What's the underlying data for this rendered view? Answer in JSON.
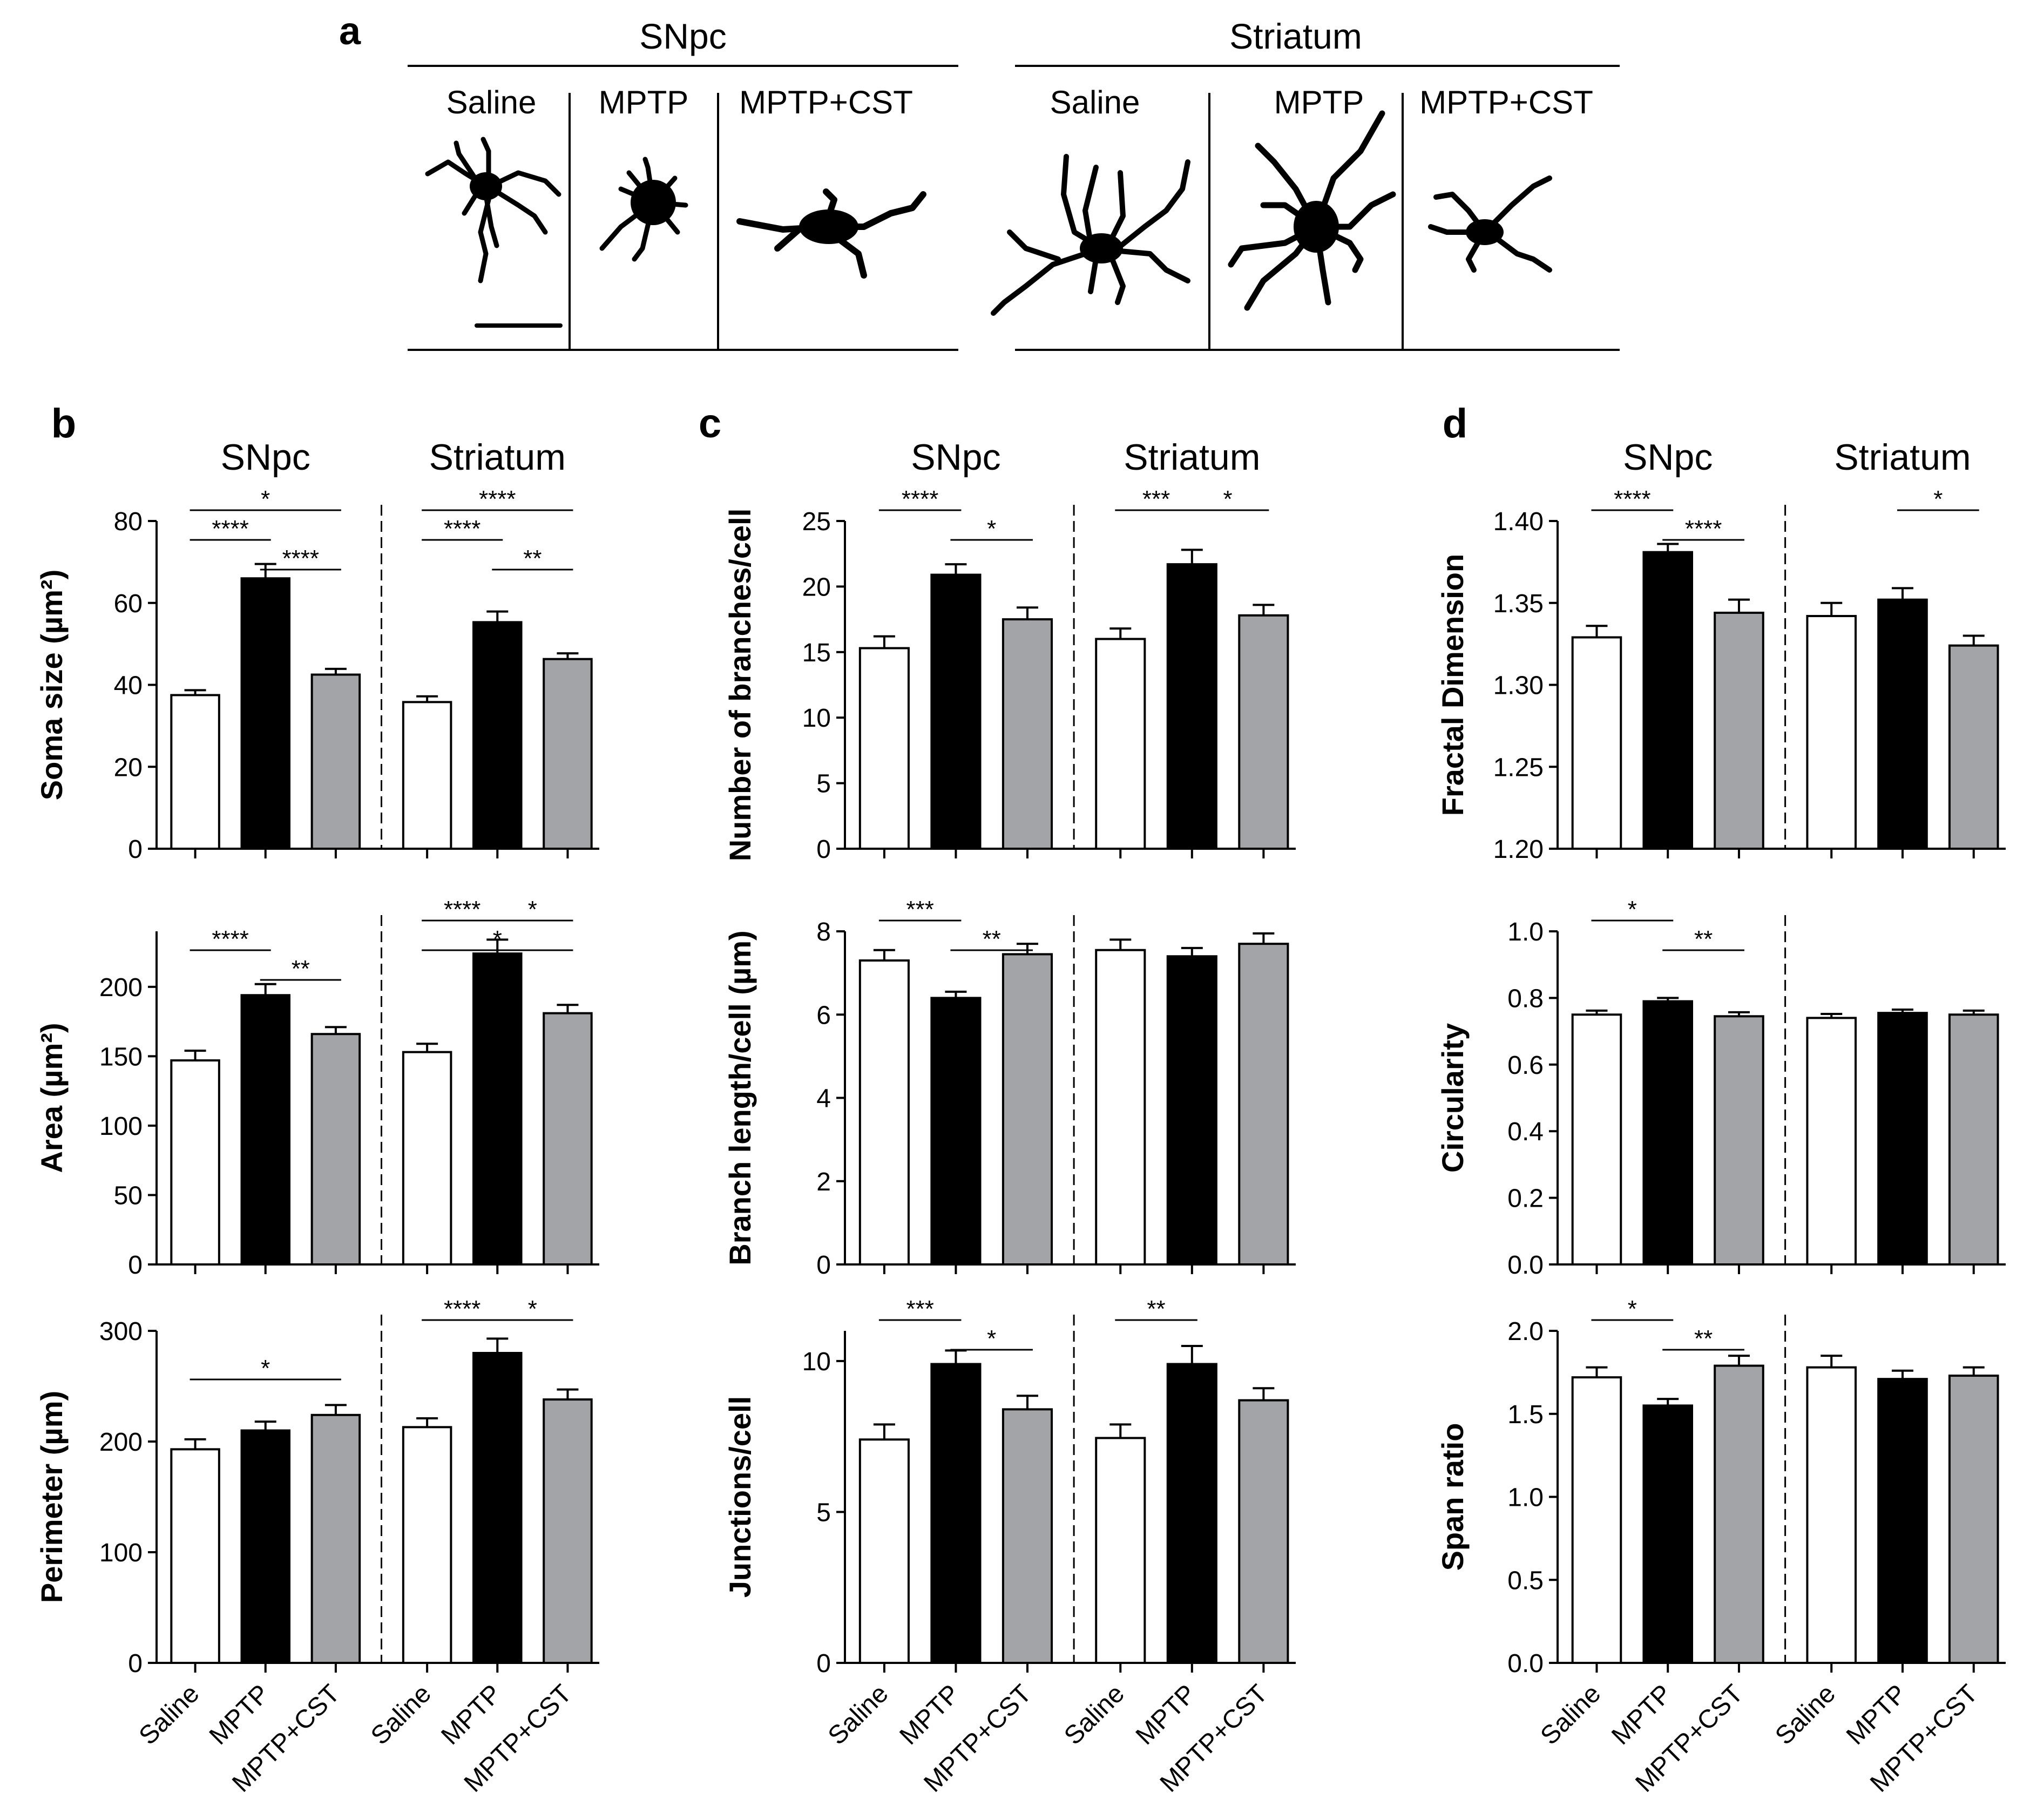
{
  "colors": {
    "saline": "#ffffff",
    "mptp": "#000000",
    "mptp_cst": "#a3a4a8",
    "axis": "#000000"
  },
  "panel_a": {
    "letter": "a",
    "regions": [
      {
        "name": "SNpc",
        "groups": [
          "Saline",
          "MPTP",
          "MPTP+CST"
        ]
      },
      {
        "name": "Striatum",
        "groups": [
          "Saline",
          "MPTP",
          "MPTP+CST"
        ]
      }
    ]
  },
  "chart_data": [
    {
      "id": "soma",
      "panel": "b",
      "panel_letter": "b",
      "type": "bar",
      "ylabel": "Soma size (µm²)",
      "ylim": [
        0,
        80
      ],
      "yticks": [
        "0",
        "20",
        "40",
        "60",
        "80"
      ],
      "regions": [
        "SNpc",
        "Striatum"
      ],
      "categories": [
        "Saline",
        "MPTP",
        "MPTP+CST",
        "Saline",
        "MPTP",
        "MPTP+CST"
      ],
      "values": [
        37.5,
        66,
        42.5,
        35.8,
        55.3,
        46.3
      ],
      "errors": [
        1.2,
        3.5,
        1.4,
        1.4,
        2.6,
        1.4
      ],
      "sig": [
        {
          "from": 0,
          "to": 2,
          "level": 0,
          "label": "*",
          "region": 0
        },
        {
          "from": 0,
          "to": 1,
          "level": 1,
          "label": "****",
          "region": 0
        },
        {
          "from": 1,
          "to": 2,
          "level": 2,
          "label": "****",
          "region": 0
        },
        {
          "from": 3,
          "to": 5,
          "level": 0,
          "label": "****",
          "region": 1
        },
        {
          "from": 3,
          "to": 4,
          "level": 1,
          "label": "****",
          "region": 1
        },
        {
          "from": 4,
          "to": 5,
          "level": 2,
          "label": "**",
          "region": 1
        }
      ]
    },
    {
      "id": "area",
      "panel": "b",
      "type": "bar",
      "ylabel": "Area (µm²)",
      "ylim": [
        0,
        240
      ],
      "yticks": [
        "0",
        "50",
        "100",
        "150",
        "200"
      ],
      "categories": [
        "Saline",
        "MPTP",
        "MPTP+CST",
        "Saline",
        "MPTP",
        "MPTP+CST"
      ],
      "values": [
        147,
        194,
        166,
        153,
        224,
        181
      ],
      "errors": [
        7,
        8,
        5,
        6,
        10,
        6
      ],
      "sig": [
        {
          "from": 0,
          "to": 1,
          "level": 1,
          "label": "****",
          "region": 0
        },
        {
          "from": 1,
          "to": 2,
          "level": 2,
          "label": "**",
          "region": 0
        },
        {
          "from": 3,
          "to": 4,
          "level": 0,
          "label": "****",
          "region": 1
        },
        {
          "from": 3,
          "to": 5,
          "level": 1,
          "label": "*",
          "region": 1
        },
        {
          "from": 4,
          "to": 5,
          "level": 0,
          "label": "*",
          "region": 1
        }
      ]
    },
    {
      "id": "perimeter",
      "panel": "b",
      "type": "bar",
      "ylabel": "Perimeter (µm)",
      "ylim": [
        0,
        300
      ],
      "yticks": [
        "0",
        "100",
        "200",
        "300"
      ],
      "categories": [
        "Saline",
        "MPTP",
        "MPTP+CST",
        "Saline",
        "MPTP",
        "MPTP+CST"
      ],
      "values": [
        193,
        210,
        224,
        213,
        280,
        238
      ],
      "errors": [
        9,
        8,
        9,
        8,
        13,
        9
      ],
      "sig": [
        {
          "from": 0,
          "to": 2,
          "level": 2,
          "label": "*",
          "region": 0
        },
        {
          "from": 3,
          "to": 4,
          "level": 0,
          "label": "****",
          "region": 1
        },
        {
          "from": 4,
          "to": 5,
          "level": 0,
          "label": "*",
          "region": 1
        }
      ]
    },
    {
      "id": "branches",
      "panel": "c",
      "panel_letter": "c",
      "type": "bar",
      "ylabel": "Number of branches/cell",
      "ylim": [
        0,
        25
      ],
      "yticks": [
        "0",
        "5",
        "10",
        "15",
        "20",
        "25"
      ],
      "regions": [
        "SNpc",
        "Striatum"
      ],
      "categories": [
        "Saline",
        "MPTP",
        "MPTP+CST",
        "Saline",
        "MPTP",
        "MPTP+CST"
      ],
      "values": [
        15.3,
        20.9,
        17.5,
        16.0,
        21.7,
        17.8
      ],
      "errors": [
        0.9,
        0.8,
        0.9,
        0.8,
        1.1,
        0.8
      ],
      "sig": [
        {
          "from": 0,
          "to": 1,
          "level": 0,
          "label": "****",
          "region": 0
        },
        {
          "from": 1,
          "to": 2,
          "level": 1,
          "label": "*",
          "region": 0
        },
        {
          "from": 3,
          "to": 4,
          "level": 0,
          "label": "***",
          "region": 1
        },
        {
          "from": 4,
          "to": 5,
          "level": 0,
          "label": "*",
          "region": 1
        }
      ]
    },
    {
      "id": "branch_length",
      "panel": "c",
      "type": "bar",
      "ylabel": "Branch length/cell (µm)",
      "ylim": [
        0,
        8
      ],
      "yticks": [
        "0",
        "2",
        "4",
        "6",
        "8"
      ],
      "categories": [
        "Saline",
        "MPTP",
        "MPTP+CST",
        "Saline",
        "MPTP",
        "MPTP+CST"
      ],
      "values": [
        7.3,
        6.4,
        7.45,
        7.55,
        7.4,
        7.7
      ],
      "errors": [
        0.25,
        0.15,
        0.25,
        0.25,
        0.2,
        0.25
      ],
      "sig": [
        {
          "from": 0,
          "to": 1,
          "level": 0,
          "label": "***",
          "region": 0
        },
        {
          "from": 1,
          "to": 2,
          "level": 1,
          "label": "**",
          "region": 0
        }
      ]
    },
    {
      "id": "junctions",
      "panel": "c",
      "type": "bar",
      "ylabel": "Junctions/cell",
      "ylim": [
        0,
        11
      ],
      "yticks": [
        "0",
        "5",
        "10"
      ],
      "categories": [
        "Saline",
        "MPTP",
        "MPTP+CST",
        "Saline",
        "MPTP",
        "MPTP+CST"
      ],
      "values": [
        7.4,
        9.9,
        8.4,
        7.45,
        9.9,
        8.7
      ],
      "errors": [
        0.5,
        0.45,
        0.45,
        0.45,
        0.6,
        0.4
      ],
      "sig": [
        {
          "from": 0,
          "to": 1,
          "level": 0,
          "label": "***",
          "region": 0
        },
        {
          "from": 1,
          "to": 2,
          "level": 1,
          "label": "*",
          "region": 0
        },
        {
          "from": 3,
          "to": 4,
          "level": 0,
          "label": "**",
          "region": 1
        }
      ]
    },
    {
      "id": "fractal",
      "panel": "d",
      "panel_letter": "d",
      "type": "bar",
      "ylabel": "Fractal Dimension",
      "ylim": [
        1.2,
        1.4
      ],
      "yticks": [
        "1.20",
        "1.25",
        "1.30",
        "1.35",
        "1.40"
      ],
      "regions": [
        "SNpc",
        "Striatum"
      ],
      "categories": [
        "Saline",
        "MPTP",
        "MPTP+CST",
        "Saline",
        "MPTP",
        "MPTP+CST"
      ],
      "values": [
        1.329,
        1.381,
        1.344,
        1.342,
        1.352,
        1.324
      ],
      "errors": [
        0.007,
        0.005,
        0.008,
        0.008,
        0.007,
        0.006
      ],
      "sig": [
        {
          "from": 0,
          "to": 1,
          "level": 0,
          "label": "****",
          "region": 0
        },
        {
          "from": 1,
          "to": 2,
          "level": 1,
          "label": "****",
          "region": 0
        },
        {
          "from": 4,
          "to": 5,
          "level": 0,
          "label": "*",
          "region": 1
        }
      ]
    },
    {
      "id": "circularity",
      "panel": "d",
      "type": "bar",
      "ylabel": "Circularity",
      "ylim": [
        0,
        1.0
      ],
      "yticks": [
        "0.0",
        "0.2",
        "0.4",
        "0.6",
        "0.8",
        "1.0"
      ],
      "categories": [
        "Saline",
        "MPTP",
        "MPTP+CST",
        "Saline",
        "MPTP",
        "MPTP+CST"
      ],
      "values": [
        0.75,
        0.79,
        0.745,
        0.74,
        0.755,
        0.75
      ],
      "errors": [
        0.012,
        0.01,
        0.012,
        0.012,
        0.01,
        0.012
      ],
      "sig": [
        {
          "from": 0,
          "to": 1,
          "level": 0,
          "label": "*",
          "region": 0
        },
        {
          "from": 1,
          "to": 2,
          "level": 1,
          "label": "**",
          "region": 0
        }
      ]
    },
    {
      "id": "span",
      "panel": "d",
      "type": "bar",
      "ylabel": "Span ratio",
      "ylim": [
        0,
        2.0
      ],
      "yticks": [
        "0.0",
        "0.5",
        "1.0",
        "1.5",
        "2.0"
      ],
      "categories": [
        "Saline",
        "MPTP",
        "MPTP+CST",
        "Saline",
        "MPTP",
        "MPTP+CST"
      ],
      "values": [
        1.72,
        1.55,
        1.79,
        1.78,
        1.71,
        1.73
      ],
      "errors": [
        0.06,
        0.04,
        0.06,
        0.07,
        0.05,
        0.05
      ],
      "sig": [
        {
          "from": 0,
          "to": 1,
          "level": 0,
          "label": "*",
          "region": 0
        },
        {
          "from": 1,
          "to": 2,
          "level": 1,
          "label": "**",
          "region": 0
        }
      ]
    }
  ]
}
